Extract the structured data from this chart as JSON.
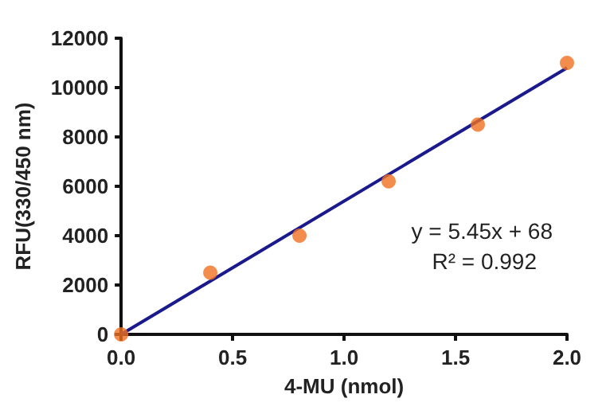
{
  "chart_data": {
    "type": "scatter",
    "xlabel": "4-MU (nmol)",
    "ylabel": "RFU(330/450 nm)",
    "xlim": [
      0,
      2
    ],
    "xticks": [
      {
        "value": 0,
        "label": "0.0"
      },
      {
        "value": 0.5,
        "label": "0.5"
      },
      {
        "value": 1,
        "label": "1.0"
      },
      {
        "value": 1.5,
        "label": "1.5"
      },
      {
        "value": 2,
        "label": "2.0"
      }
    ],
    "ylim": [
      0,
      12000
    ],
    "yticks": [
      0,
      2000,
      4000,
      6000,
      8000,
      10000,
      12000
    ],
    "grid": false,
    "series": [
      {
        "type": "line",
        "color": "#1a1a8c",
        "x": [
          0,
          2
        ],
        "values": [
          0,
          10800
        ],
        "marker": "none",
        "line_style": "solid"
      },
      {
        "color": "#f07020",
        "x": [
          0,
          0.4,
          0.8,
          1.2,
          1.6,
          2
        ],
        "values": [
          0,
          2500,
          4000,
          6200,
          8500,
          11000
        ],
        "marker": "circle"
      }
    ],
    "annotations": [
      "y = 5.45x + 68",
      "R² = 0.992"
    ]
  }
}
